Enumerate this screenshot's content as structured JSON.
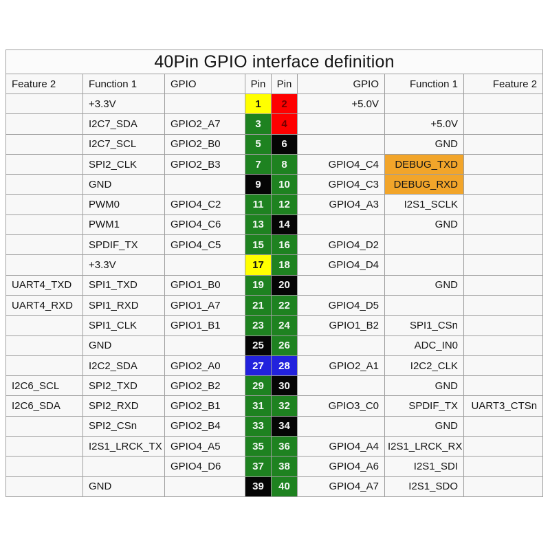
{
  "chart_data": {
    "type": "table",
    "title": "40Pin GPIO interface definition",
    "columns": [
      "Feature 2",
      "Function 1",
      "GPIO",
      "Pin",
      "Pin",
      "GPIO",
      "Function 1",
      "Feature 2"
    ],
    "rows": [
      {
        "l_feature2": "",
        "l_function1": "+3.3V",
        "l_gpio": "",
        "l_pin": "1",
        "l_pin_color": "yellow",
        "r_pin": "2",
        "r_pin_color": "red",
        "r_gpio": "+5.0V",
        "r_function1": "",
        "r_function1_bg": "",
        "r_feature2": ""
      },
      {
        "l_feature2": "",
        "l_function1": "I2C7_SDA",
        "l_gpio": "GPIO2_A7",
        "l_pin": "3",
        "l_pin_color": "green",
        "r_pin": "4",
        "r_pin_color": "red",
        "r_gpio": "",
        "r_function1": "+5.0V",
        "r_function1_bg": "",
        "r_feature2": ""
      },
      {
        "l_feature2": "",
        "l_function1": "I2C7_SCL",
        "l_gpio": "GPIO2_B0",
        "l_pin": "5",
        "l_pin_color": "green",
        "r_pin": "6",
        "r_pin_color": "black",
        "r_gpio": "",
        "r_function1": "GND",
        "r_function1_bg": "",
        "r_feature2": ""
      },
      {
        "l_feature2": "",
        "l_function1": "SPI2_CLK",
        "l_gpio": "GPIO2_B3",
        "l_pin": "7",
        "l_pin_color": "green",
        "r_pin": "8",
        "r_pin_color": "green",
        "r_gpio": "GPIO4_C4",
        "r_function1": "DEBUG_TXD",
        "r_function1_bg": "orange",
        "r_feature2": ""
      },
      {
        "l_feature2": "",
        "l_function1": "GND",
        "l_gpio": "",
        "l_pin": "9",
        "l_pin_color": "black",
        "r_pin": "10",
        "r_pin_color": "green",
        "r_gpio": "GPIO4_C3",
        "r_function1": "DEBUG_RXD",
        "r_function1_bg": "orange",
        "r_feature2": ""
      },
      {
        "l_feature2": "",
        "l_function1": "PWM0",
        "l_gpio": "GPIO4_C2",
        "l_pin": "11",
        "l_pin_color": "green",
        "r_pin": "12",
        "r_pin_color": "green",
        "r_gpio": "GPIO4_A3",
        "r_function1": "I2S1_SCLK",
        "r_function1_bg": "",
        "r_feature2": ""
      },
      {
        "l_feature2": "",
        "l_function1": "PWM1",
        "l_gpio": "GPIO4_C6",
        "l_pin": "13",
        "l_pin_color": "green",
        "r_pin": "14",
        "r_pin_color": "black",
        "r_gpio": "",
        "r_function1": "GND",
        "r_function1_bg": "",
        "r_feature2": ""
      },
      {
        "l_feature2": "",
        "l_function1": "SPDIF_TX",
        "l_gpio": "GPIO4_C5",
        "l_pin": "15",
        "l_pin_color": "green",
        "r_pin": "16",
        "r_pin_color": "green",
        "r_gpio": "GPIO4_D2",
        "r_function1": "",
        "r_function1_bg": "",
        "r_feature2": ""
      },
      {
        "l_feature2": "",
        "l_function1": "+3.3V",
        "l_gpio": "",
        "l_pin": "17",
        "l_pin_color": "yellow",
        "r_pin": "18",
        "r_pin_color": "green",
        "r_gpio": "GPIO4_D4",
        "r_function1": "",
        "r_function1_bg": "",
        "r_feature2": ""
      },
      {
        "l_feature2": "UART4_TXD",
        "l_function1": "SPI1_TXD",
        "l_gpio": "GPIO1_B0",
        "l_pin": "19",
        "l_pin_color": "green",
        "r_pin": "20",
        "r_pin_color": "black",
        "r_gpio": "",
        "r_function1": "GND",
        "r_function1_bg": "",
        "r_feature2": ""
      },
      {
        "l_feature2": "UART4_RXD",
        "l_function1": "SPI1_RXD",
        "l_gpio": "GPIO1_A7",
        "l_pin": "21",
        "l_pin_color": "green",
        "r_pin": "22",
        "r_pin_color": "green",
        "r_gpio": "GPIO4_D5",
        "r_function1": "",
        "r_function1_bg": "",
        "r_feature2": ""
      },
      {
        "l_feature2": "",
        "l_function1": "SPI1_CLK",
        "l_gpio": "GPIO1_B1",
        "l_pin": "23",
        "l_pin_color": "green",
        "r_pin": "24",
        "r_pin_color": "green",
        "r_gpio": "GPIO1_B2",
        "r_function1": "SPI1_CSn",
        "r_function1_bg": "",
        "r_feature2": ""
      },
      {
        "l_feature2": "",
        "l_function1": "GND",
        "l_gpio": "",
        "l_pin": "25",
        "l_pin_color": "black",
        "r_pin": "26",
        "r_pin_color": "green",
        "r_gpio": "",
        "r_function1": "ADC_IN0",
        "r_function1_bg": "",
        "r_feature2": ""
      },
      {
        "l_feature2": "",
        "l_function1": "I2C2_SDA",
        "l_gpio": "GPIO2_A0",
        "l_pin": "27",
        "l_pin_color": "blue",
        "r_pin": "28",
        "r_pin_color": "blue",
        "r_gpio": "GPIO2_A1",
        "r_function1": "I2C2_CLK",
        "r_function1_bg": "",
        "r_feature2": ""
      },
      {
        "l_feature2": "I2C6_SCL",
        "l_function1": "SPI2_TXD",
        "l_gpio": "GPIO2_B2",
        "l_pin": "29",
        "l_pin_color": "green",
        "r_pin": "30",
        "r_pin_color": "black",
        "r_gpio": "",
        "r_function1": "GND",
        "r_function1_bg": "",
        "r_feature2": ""
      },
      {
        "l_feature2": "I2C6_SDA",
        "l_function1": "SPI2_RXD",
        "l_gpio": "GPIO2_B1",
        "l_pin": "31",
        "l_pin_color": "green",
        "r_pin": "32",
        "r_pin_color": "green",
        "r_gpio": "GPIO3_C0",
        "r_function1": "SPDIF_TX",
        "r_function1_bg": "",
        "r_feature2": "UART3_CTSn"
      },
      {
        "l_feature2": "",
        "l_function1": "SPI2_CSn",
        "l_gpio": "GPIO2_B4",
        "l_pin": "33",
        "l_pin_color": "green",
        "r_pin": "34",
        "r_pin_color": "black",
        "r_gpio": "",
        "r_function1": "GND",
        "r_function1_bg": "",
        "r_feature2": ""
      },
      {
        "l_feature2": "",
        "l_function1": "I2S1_LRCK_TX",
        "l_gpio": "GPIO4_A5",
        "l_pin": "35",
        "l_pin_color": "green",
        "r_pin": "36",
        "r_pin_color": "green",
        "r_gpio": "GPIO4_A4",
        "r_function1": "I2S1_LRCK_RX",
        "r_function1_bg": "",
        "r_feature2": ""
      },
      {
        "l_feature2": "",
        "l_function1": "",
        "l_gpio": "GPIO4_D6",
        "l_pin": "37",
        "l_pin_color": "green",
        "r_pin": "38",
        "r_pin_color": "green",
        "r_gpio": "GPIO4_A6",
        "r_function1": "I2S1_SDI",
        "r_function1_bg": "",
        "r_feature2": ""
      },
      {
        "l_feature2": "",
        "l_function1": "GND",
        "l_gpio": "",
        "l_pin": "39",
        "l_pin_color": "black",
        "r_pin": "40",
        "r_pin_color": "green",
        "r_gpio": "GPIO4_A7",
        "r_function1": "I2S1_SDO",
        "r_function1_bg": "",
        "r_feature2": ""
      }
    ]
  },
  "colors": {
    "yellow": {
      "bg": "#ffff00",
      "text": "#111111"
    },
    "red": {
      "bg": "#fe0000",
      "text": "#730000"
    },
    "green": {
      "bg": "#1e8220",
      "text": "#f4f8f4"
    },
    "black": {
      "bg": "#050505",
      "text": "#f5f5f5"
    },
    "blue": {
      "bg": "#2222dd",
      "text": "#ffffff"
    },
    "orange": {
      "bg": "#f2a52a",
      "text": "#151515"
    }
  }
}
